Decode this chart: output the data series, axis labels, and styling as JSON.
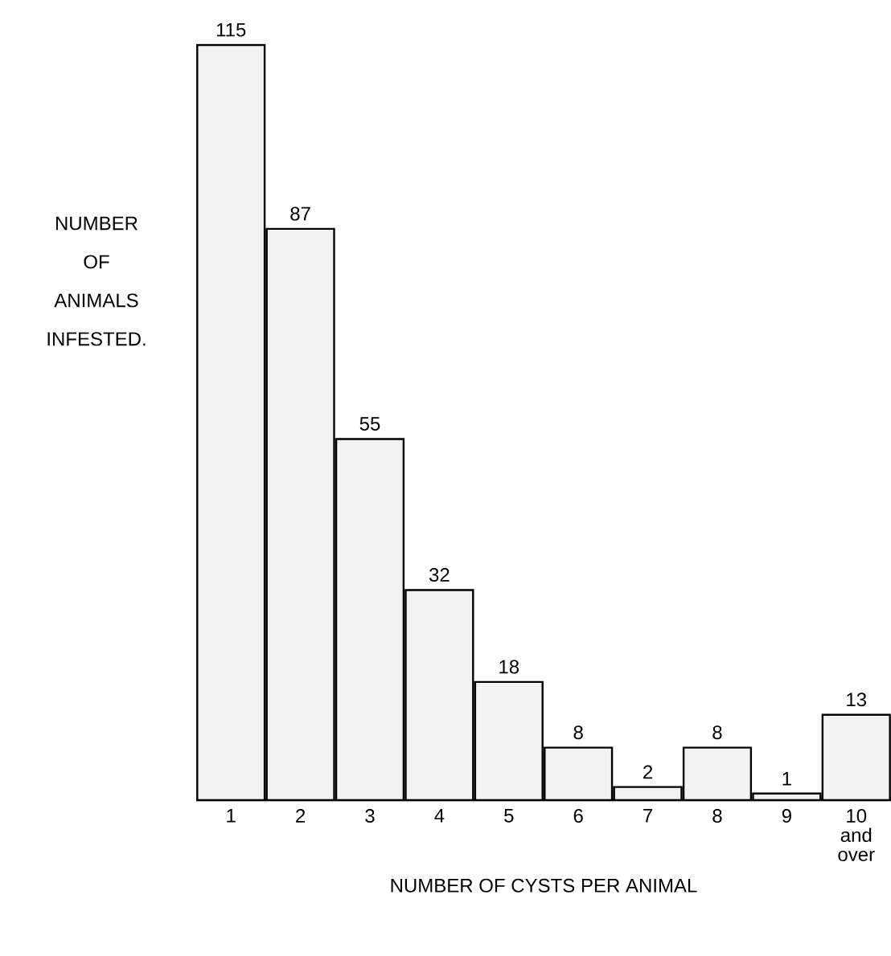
{
  "chart_data": {
    "type": "bar",
    "categories": [
      "1",
      "2",
      "3",
      "4",
      "5",
      "6",
      "7",
      "8",
      "9",
      "10 and over"
    ],
    "values": [
      115,
      87,
      55,
      32,
      18,
      8,
      2,
      8,
      1,
      13
    ],
    "data_labels": true,
    "color": "#f2f2f2",
    "xlabel": "NUMBER OF CYSTS PER ANIMAL",
    "ylabel": "NUMBER OF ANIMALS INFESTED."
  }
}
